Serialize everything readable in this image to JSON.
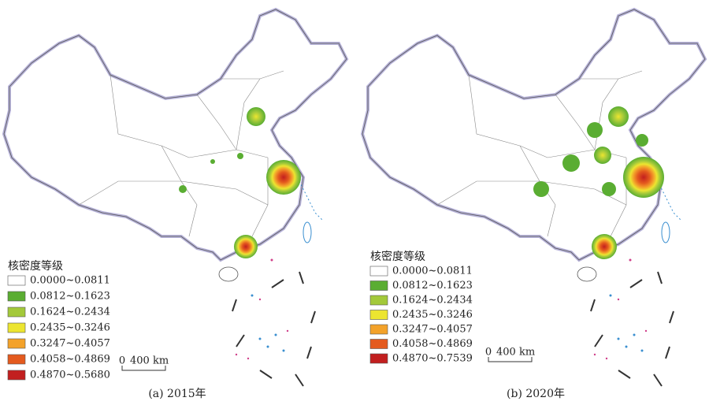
{
  "panels": [
    {
      "caption": "(a) 2015年",
      "legend": {
        "title": "核密度等级",
        "items": [
          {
            "label": "0.0000~0.0811",
            "color": "#ffffff"
          },
          {
            "label": "0.0812~0.1623",
            "color": "#5aad32"
          },
          {
            "label": "0.1624~0.2434",
            "color": "#a3c93a"
          },
          {
            "label": "0.2435~0.3246",
            "color": "#ece530"
          },
          {
            "label": "0.3247~0.4057",
            "color": "#f3a22a"
          },
          {
            "label": "0.4058~0.4869",
            "color": "#e45a1e"
          },
          {
            "label": "0.4870~0.5680",
            "color": "#c21f1f"
          }
        ]
      },
      "scale": {
        "zero": "0",
        "label": "400 km"
      }
    },
    {
      "caption": "(b) 2020年",
      "legend": {
        "title": "核密度等级",
        "items": [
          {
            "label": "0.0000~0.0811",
            "color": "#ffffff"
          },
          {
            "label": "0.0812~0.1623",
            "color": "#5aad32"
          },
          {
            "label": "0.1624~0.2434",
            "color": "#a3c93a"
          },
          {
            "label": "0.2435~0.3246",
            "color": "#ece530"
          },
          {
            "label": "0.3247~0.4057",
            "color": "#f3a22a"
          },
          {
            "label": "0.4058~0.4869",
            "color": "#e45a1e"
          },
          {
            "label": "0.4870~0.7539",
            "color": "#c21f1f"
          }
        ]
      },
      "scale": {
        "zero": "0",
        "label": "400 km"
      }
    }
  ]
}
